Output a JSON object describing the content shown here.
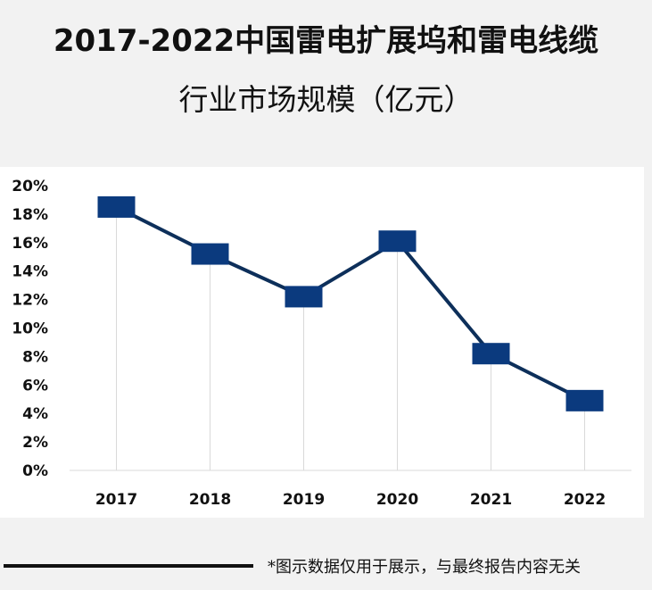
{
  "title_line1": "2017-2022中国雷电扩展坞和雷电线缆",
  "title_line2": "行业市场规模（亿元）",
  "footnote": "*图示数据仅用于展示，与最终报告内容无关",
  "colors": {
    "line": "#0d2f5a",
    "marker": "#0b3a7e",
    "grid": "#d9d9d9"
  },
  "chart_data": {
    "type": "line",
    "title": "2017-2022中国雷电扩展坞和雷电线缆行业市场规模（亿元）",
    "categories": [
      "2017",
      "2018",
      "2019",
      "2020",
      "2021",
      "2022"
    ],
    "values": [
      18.5,
      15.2,
      12.2,
      16.1,
      8.2,
      4.9
    ],
    "y_ticks": [
      "0%",
      "2%",
      "4%",
      "6%",
      "8%",
      "10%",
      "12%",
      "14%",
      "16%",
      "18%",
      "20%"
    ],
    "ylim": [
      0,
      20
    ],
    "grid": "vertical drop lines",
    "marker": "square"
  }
}
